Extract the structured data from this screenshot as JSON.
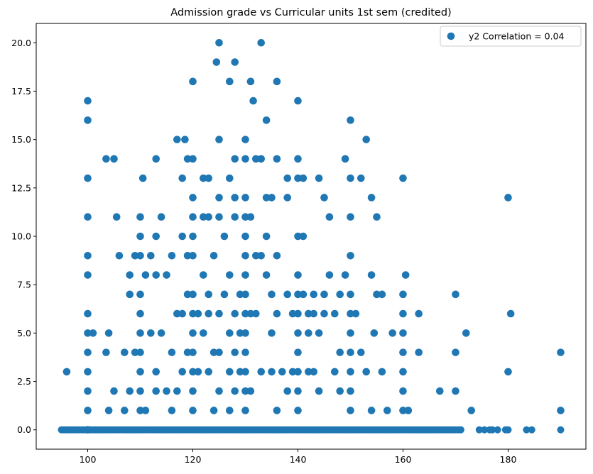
{
  "chart_data": {
    "type": "scatter",
    "title": "Admission grade vs Curricular units 1st sem (credited)",
    "xlabel": "",
    "ylabel": "",
    "xlim": [
      90.2,
      194.8
    ],
    "ylim": [
      -1.0,
      21.0
    ],
    "xticks": [
      100,
      120,
      140,
      160,
      180
    ],
    "xtick_labels": [
      "100",
      "120",
      "140",
      "160",
      "180"
    ],
    "yticks": [
      0.0,
      2.5,
      5.0,
      7.5,
      10.0,
      12.5,
      15.0,
      17.5,
      20.0
    ],
    "ytick_labels": [
      "0.0",
      "2.5",
      "5.0",
      "7.5",
      "10.0",
      "12.5",
      "15.0",
      "17.5",
      "20.0"
    ],
    "grid": false,
    "legend_position": "top-right",
    "color": "#1f77b4",
    "series": [
      {
        "name": "y2 Correlation = 0.04",
        "points": [
          [
            100,
            17
          ],
          [
            100,
            16
          ],
          [
            100,
            13
          ],
          [
            100,
            11
          ],
          [
            100,
            9
          ],
          [
            100,
            8
          ],
          [
            100,
            6
          ],
          [
            100,
            5
          ],
          [
            100,
            4
          ],
          [
            100,
            3
          ],
          [
            100,
            2
          ],
          [
            100,
            1
          ],
          [
            100,
            0
          ],
          [
            96,
            3
          ],
          [
            103.5,
            14
          ],
          [
            105,
            14
          ],
          [
            105.5,
            11
          ],
          [
            101,
            5
          ],
          [
            103.5,
            4
          ],
          [
            104,
            5
          ],
          [
            104,
            1
          ],
          [
            105,
            2
          ],
          [
            106,
            9
          ],
          [
            107,
            4
          ],
          [
            107,
            1
          ],
          [
            108,
            8
          ],
          [
            108,
            7
          ],
          [
            108,
            2
          ],
          [
            109,
            4
          ],
          [
            109,
            9
          ],
          [
            110,
            11
          ],
          [
            110,
            10
          ],
          [
            110,
            9
          ],
          [
            110,
            6
          ],
          [
            110,
            7
          ],
          [
            110,
            5
          ],
          [
            110,
            4
          ],
          [
            110,
            3
          ],
          [
            110,
            2
          ],
          [
            110,
            1
          ],
          [
            110.5,
            13
          ],
          [
            111,
            8
          ],
          [
            111,
            1
          ],
          [
            112,
            9
          ],
          [
            112,
            5
          ],
          [
            113,
            14
          ],
          [
            113,
            10
          ],
          [
            113,
            8
          ],
          [
            113,
            3
          ],
          [
            113,
            2
          ],
          [
            114,
            11
          ],
          [
            114,
            5
          ],
          [
            115,
            8
          ],
          [
            115,
            2
          ],
          [
            116,
            9
          ],
          [
            116,
            4
          ],
          [
            116,
            1
          ],
          [
            117,
            15
          ],
          [
            117,
            6
          ],
          [
            117,
            2
          ],
          [
            118,
            13
          ],
          [
            118,
            10
          ],
          [
            118,
            6
          ],
          [
            118,
            3
          ],
          [
            118.5,
            15
          ],
          [
            119,
            14
          ],
          [
            119,
            9
          ],
          [
            119,
            7
          ],
          [
            119,
            4
          ],
          [
            120,
            18
          ],
          [
            120,
            14
          ],
          [
            120,
            12
          ],
          [
            120,
            11
          ],
          [
            120,
            10
          ],
          [
            120,
            9
          ],
          [
            120,
            7
          ],
          [
            120,
            6
          ],
          [
            120,
            5
          ],
          [
            120,
            4
          ],
          [
            120,
            3
          ],
          [
            120,
            2
          ],
          [
            120,
            1
          ],
          [
            121,
            6
          ],
          [
            121,
            3
          ],
          [
            122,
            13
          ],
          [
            122,
            11
          ],
          [
            122,
            8
          ],
          [
            122,
            5
          ],
          [
            123,
            13
          ],
          [
            123,
            11
          ],
          [
            123,
            7
          ],
          [
            123,
            6
          ],
          [
            123,
            3
          ],
          [
            124,
            9
          ],
          [
            124,
            4
          ],
          [
            124,
            1
          ],
          [
            124.5,
            19
          ],
          [
            125,
            20
          ],
          [
            125,
            15
          ],
          [
            125,
            12
          ],
          [
            125,
            11
          ],
          [
            125,
            6
          ],
          [
            125,
            4
          ],
          [
            125,
            2
          ],
          [
            126,
            7
          ],
          [
            126,
            10
          ],
          [
            127,
            18
          ],
          [
            127,
            13
          ],
          [
            127,
            8
          ],
          [
            127,
            5
          ],
          [
            127,
            3
          ],
          [
            127,
            1
          ],
          [
            128,
            19
          ],
          [
            128,
            14
          ],
          [
            128,
            12
          ],
          [
            128,
            11
          ],
          [
            128,
            6
          ],
          [
            128,
            4
          ],
          [
            128,
            2
          ],
          [
            129,
            7
          ],
          [
            129,
            5
          ],
          [
            129,
            3
          ],
          [
            130,
            15
          ],
          [
            130,
            14
          ],
          [
            130,
            12
          ],
          [
            130,
            11
          ],
          [
            130,
            10
          ],
          [
            130,
            9
          ],
          [
            130,
            8
          ],
          [
            130,
            7
          ],
          [
            130,
            6
          ],
          [
            130,
            5
          ],
          [
            130,
            4
          ],
          [
            130,
            3
          ],
          [
            130,
            2
          ],
          [
            130,
            1
          ],
          [
            131,
            18
          ],
          [
            131,
            11
          ],
          [
            131,
            6
          ],
          [
            131,
            2
          ],
          [
            131.5,
            17
          ],
          [
            132,
            14
          ],
          [
            132,
            9
          ],
          [
            132,
            6
          ],
          [
            133,
            20
          ],
          [
            133,
            14
          ],
          [
            133,
            9
          ],
          [
            133,
            3
          ],
          [
            134,
            16
          ],
          [
            134,
            12
          ],
          [
            134,
            8
          ],
          [
            134,
            10
          ],
          [
            135,
            12
          ],
          [
            135,
            7
          ],
          [
            135,
            5
          ],
          [
            135,
            3
          ],
          [
            136,
            18
          ],
          [
            136,
            14
          ],
          [
            136,
            9
          ],
          [
            136,
            6
          ],
          [
            136,
            1
          ],
          [
            137,
            3
          ],
          [
            138,
            13
          ],
          [
            138,
            12
          ],
          [
            138,
            7
          ],
          [
            138,
            2
          ],
          [
            139,
            6
          ],
          [
            139,
            3
          ],
          [
            140,
            17
          ],
          [
            140,
            14
          ],
          [
            140,
            13
          ],
          [
            140,
            10
          ],
          [
            140,
            8
          ],
          [
            140,
            7
          ],
          [
            140,
            6
          ],
          [
            140,
            5
          ],
          [
            140,
            4
          ],
          [
            140,
            3
          ],
          [
            140,
            2
          ],
          [
            140,
            1
          ],
          [
            141,
            13
          ],
          [
            141,
            10
          ],
          [
            141,
            7
          ],
          [
            142,
            6
          ],
          [
            142,
            5
          ],
          [
            142,
            3
          ],
          [
            143,
            7
          ],
          [
            143,
            6
          ],
          [
            143,
            3
          ],
          [
            144,
            13
          ],
          [
            144,
            5
          ],
          [
            144,
            2
          ],
          [
            145,
            12
          ],
          [
            145,
            7
          ],
          [
            145,
            6
          ],
          [
            146,
            8
          ],
          [
            146,
            11
          ],
          [
            147,
            6
          ],
          [
            147,
            3
          ],
          [
            148,
            7
          ],
          [
            148,
            4
          ],
          [
            148,
            2
          ],
          [
            149,
            14
          ],
          [
            149,
            8
          ],
          [
            150,
            16
          ],
          [
            150,
            13
          ],
          [
            150,
            11
          ],
          [
            150,
            9
          ],
          [
            150,
            7
          ],
          [
            150,
            6
          ],
          [
            150,
            5
          ],
          [
            150,
            4
          ],
          [
            150,
            3
          ],
          [
            150,
            2
          ],
          [
            150,
            1
          ],
          [
            151,
            6
          ],
          [
            152,
            13
          ],
          [
            152,
            4
          ],
          [
            153,
            15
          ],
          [
            153,
            3
          ],
          [
            154,
            12
          ],
          [
            154,
            8
          ],
          [
            154,
            1
          ],
          [
            154.5,
            5
          ],
          [
            155,
            11
          ],
          [
            155,
            7
          ],
          [
            156,
            7
          ],
          [
            156,
            3
          ],
          [
            157,
            1
          ],
          [
            158,
            5
          ],
          [
            160,
            13
          ],
          [
            160,
            7
          ],
          [
            160,
            6
          ],
          [
            160,
            5
          ],
          [
            160,
            4
          ],
          [
            160,
            3
          ],
          [
            160,
            2
          ],
          [
            160,
            1
          ],
          [
            160.5,
            8
          ],
          [
            161,
            1
          ],
          [
            163,
            6
          ],
          [
            163,
            4
          ],
          [
            167,
            2
          ],
          [
            170,
            7
          ],
          [
            170,
            4
          ],
          [
            170,
            2
          ],
          [
            172,
            5
          ],
          [
            173,
            1
          ],
          [
            180,
            12
          ],
          [
            180,
            3
          ],
          [
            180.5,
            6
          ],
          [
            190,
            4
          ],
          [
            190,
            1
          ]
        ]
      }
    ]
  }
}
